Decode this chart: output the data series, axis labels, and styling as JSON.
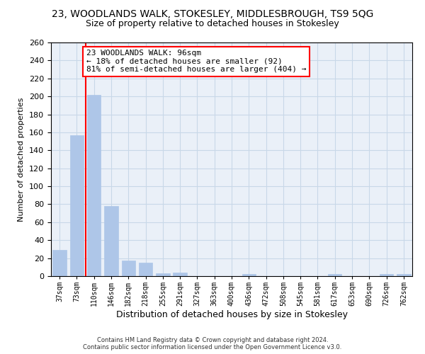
{
  "title": "23, WOODLANDS WALK, STOKESLEY, MIDDLESBROUGH, TS9 5QG",
  "subtitle": "Size of property relative to detached houses in Stokesley",
  "xlabel": "Distribution of detached houses by size in Stokesley",
  "ylabel": "Number of detached properties",
  "categories": [
    "37sqm",
    "73sqm",
    "110sqm",
    "146sqm",
    "182sqm",
    "218sqm",
    "255sqm",
    "291sqm",
    "327sqm",
    "363sqm",
    "400sqm",
    "436sqm",
    "472sqm",
    "508sqm",
    "545sqm",
    "581sqm",
    "617sqm",
    "653sqm",
    "690sqm",
    "726sqm",
    "762sqm"
  ],
  "values": [
    29,
    157,
    202,
    78,
    17,
    15,
    3,
    4,
    0,
    0,
    0,
    2,
    0,
    0,
    0,
    0,
    2,
    0,
    0,
    2,
    2
  ],
  "bar_color": "#aec6e8",
  "bar_edge_color": "#aec6e8",
  "vline_x": 1.5,
  "vline_color": "red",
  "annotation_text": "23 WOODLANDS WALK: 96sqm\n← 18% of detached houses are smaller (92)\n81% of semi-detached houses are larger (404) →",
  "annotation_box_color": "white",
  "annotation_box_edge_color": "red",
  "ylim": [
    0,
    260
  ],
  "yticks": [
    0,
    20,
    40,
    60,
    80,
    100,
    120,
    140,
    160,
    180,
    200,
    220,
    240,
    260
  ],
  "grid_color": "#c8d8e8",
  "background_color": "#eaf0f8",
  "footer_line1": "Contains HM Land Registry data © Crown copyright and database right 2024.",
  "footer_line2": "Contains public sector information licensed under the Open Government Licence v3.0.",
  "title_fontsize": 10,
  "subtitle_fontsize": 9,
  "annotation_fontsize": 8,
  "xlabel_fontsize": 9,
  "ylabel_fontsize": 8,
  "footer_fontsize": 6
}
